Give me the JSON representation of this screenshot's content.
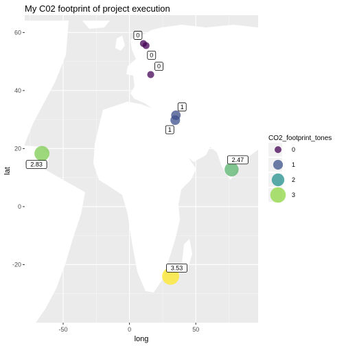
{
  "chart_data": {
    "type": "scatter",
    "title": "My C02 footprint of project execution",
    "xlabel": "long",
    "ylabel": "lat",
    "xlim": [
      -79,
      97
    ],
    "ylim": [
      -40,
      66
    ],
    "xticks": [
      -50,
      0,
      50
    ],
    "yticks": [
      -20,
      0,
      20,
      40,
      60
    ],
    "x_tick_labels": [
      "-50",
      "0",
      "50"
    ],
    "y_tick_labels": [
      "-20",
      "0",
      "20",
      "40",
      "60"
    ],
    "grid": true,
    "background": "world-map-silhouette",
    "points": [
      {
        "long": 10.5,
        "lat": 56.2,
        "value": 0.04,
        "label": "0"
      },
      {
        "long": 12.5,
        "lat": 55.5,
        "value": 0.03,
        "label": "0"
      },
      {
        "long": 16.0,
        "lat": 45.5,
        "value": 0.05,
        "label": "0"
      },
      {
        "long": 35.0,
        "lat": 31.5,
        "value": 0.92,
        "label": "1"
      },
      {
        "long": 34.5,
        "lat": 29.8,
        "value": 0.96,
        "label": "1"
      },
      {
        "long": -66.0,
        "lat": 18.3,
        "value": 2.83,
        "label": "2.83"
      },
      {
        "long": 77.0,
        "lat": 12.8,
        "value": 2.47,
        "label": "2.47"
      },
      {
        "long": 31.0,
        "lat": -24.0,
        "value": 3.53,
        "label": "3.53"
      }
    ],
    "legend": {
      "title": "CO2_footprint_tones",
      "position": "right",
      "entries": [
        {
          "label": "0",
          "value": 0,
          "color": "#440154"
        },
        {
          "label": "1",
          "value": 1,
          "color": "#3b528b"
        },
        {
          "label": "2",
          "value": 2,
          "color": "#21908c"
        },
        {
          "label": "3",
          "value": 3,
          "color": "#8fd744"
        }
      ]
    },
    "color_scale": [
      "#440154",
      "#3b528b",
      "#21908c",
      "#8fd744",
      "#fde725"
    ],
    "color_domain": [
      0,
      1,
      2,
      3,
      3.53
    ]
  }
}
